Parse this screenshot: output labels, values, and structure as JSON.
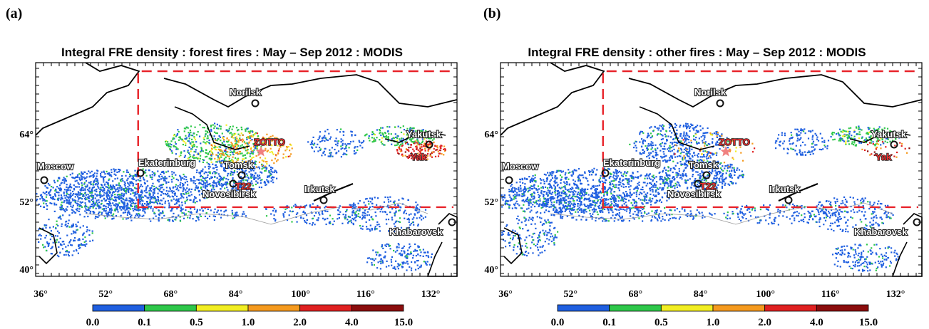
{
  "panels": [
    {
      "letter": "(a)",
      "title": "Integral FRE density : forest fires : May – Sep 2012 : MODIS"
    },
    {
      "letter": "(b)",
      "title": "Integral FRE density : other fires : May – Sep 2012 : MODIS"
    }
  ],
  "map": {
    "lon_ticks": [
      "36°",
      "52°",
      "68°",
      "84°",
      "100°",
      "116°",
      "132°"
    ],
    "lat_ticks": [
      "64°",
      "52°",
      "40°"
    ],
    "cities": [
      "Moscow",
      "Ekaterinburg",
      "Norilsk",
      "Tomsk",
      "Novosibirsk",
      "Irkutsk",
      "Yakutsk",
      "Khabarovsk"
    ],
    "stations": [
      "ZOTTO",
      "T22",
      "Yak"
    ]
  },
  "colorbar": {
    "labels": [
      "0.0",
      "0.1",
      "0.5",
      "1.0",
      "2.0",
      "4.0",
      "15.0"
    ],
    "colors": [
      "#1f5fe0",
      "#2ec84a",
      "#f2ee22",
      "#f59a1e",
      "#e02020",
      "#8b0d0d"
    ]
  }
}
